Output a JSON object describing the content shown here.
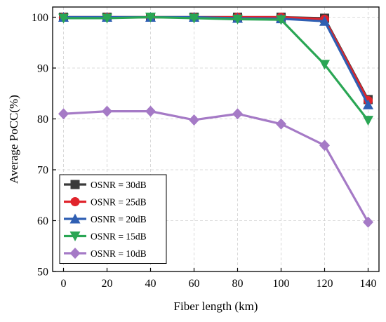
{
  "chart_data": {
    "type": "line",
    "xlabel": "Fiber length (km)",
    "ylabel": "Average PoCC(%)",
    "x": [
      0,
      20,
      40,
      60,
      80,
      100,
      120,
      140
    ],
    "xlim": [
      -5,
      145
    ],
    "ylim": [
      50,
      102
    ],
    "xticks": [
      "0",
      "20",
      "40",
      "60",
      "80",
      "100",
      "120",
      "140"
    ],
    "yticks": [
      "50",
      "60",
      "70",
      "80",
      "90",
      "100"
    ],
    "grid": true,
    "legend_position": "lower-left",
    "series": [
      {
        "name": "OSNR = 30dB",
        "color": "#3a3a3a",
        "marker": "square",
        "values": [
          100,
          100,
          100,
          100,
          100,
          100,
          99.8,
          83.8
        ]
      },
      {
        "name": "OSNR = 25dB",
        "color": "#e0242c",
        "marker": "circle",
        "values": [
          100,
          100,
          100,
          100,
          100,
          100,
          99.6,
          83.6
        ]
      },
      {
        "name": "OSNR = 20dB",
        "color": "#2f5fb3",
        "marker": "triangle-up",
        "values": [
          100,
          100,
          100,
          100,
          99.8,
          99.7,
          99.2,
          82.8
        ]
      },
      {
        "name": "OSNR = 15dB",
        "color": "#2aa654",
        "marker": "triangle-down",
        "values": [
          99.8,
          99.8,
          100,
          99.8,
          99.6,
          99.5,
          90.7,
          79.7
        ]
      },
      {
        "name": "OSNR = 10dB",
        "color": "#a57ac6",
        "marker": "diamond",
        "values": [
          81,
          81.5,
          81.5,
          79.8,
          81,
          79,
          74.8,
          59.7
        ]
      }
    ]
  }
}
